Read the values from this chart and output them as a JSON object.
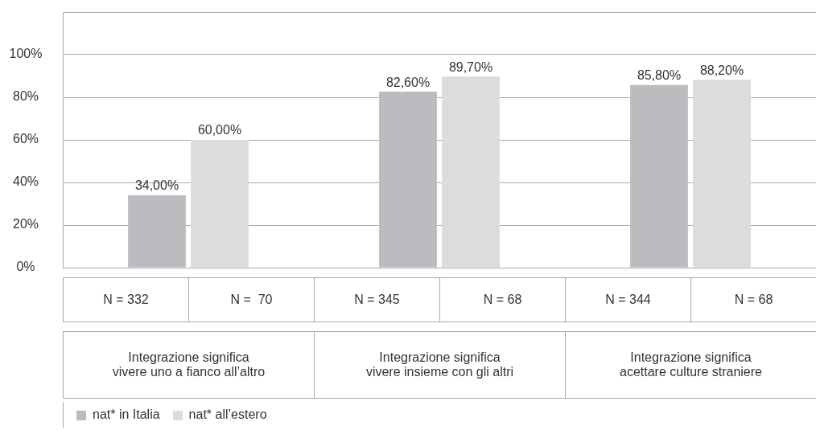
{
  "chart_data": {
    "type": "bar",
    "categories": [
      "Integrazione significa\nvivere uno a fianco all’altro",
      "Integrazione significa\nvivere insieme con gli altri",
      "Integrazione significa\nacettare culture straniere"
    ],
    "series": [
      {
        "name": "nat* in Italia",
        "color": "#bcbcc0",
        "values": [
          34,
          82.6,
          85.8
        ],
        "value_labels": [
          "34,00%",
          "82,60%",
          "85,80%"
        ]
      },
      {
        "name": "nat* all’estero",
        "color": "#dcdcdf",
        "values": [
          60,
          89.7,
          88.2
        ],
        "value_labels": [
          "60,00%",
          "89,70%",
          "88,20%"
        ]
      }
    ],
    "ylim": [
      0,
      120
    ],
    "yticks": [
      {
        "value": 0,
        "label": "0%"
      },
      {
        "value": 20,
        "label": "20%"
      },
      {
        "value": 40,
        "label": "40%"
      },
      {
        "value": 60,
        "label": "60%"
      },
      {
        "value": 80,
        "label": "80%"
      },
      {
        "value": 100,
        "label": "100%"
      }
    ],
    "annotations": [
      "N = 332",
      "N =  70",
      "N = 345",
      "N = 68",
      "N = 344",
      "N = 68"
    ],
    "grid": "y",
    "legend": "bottom left"
  }
}
